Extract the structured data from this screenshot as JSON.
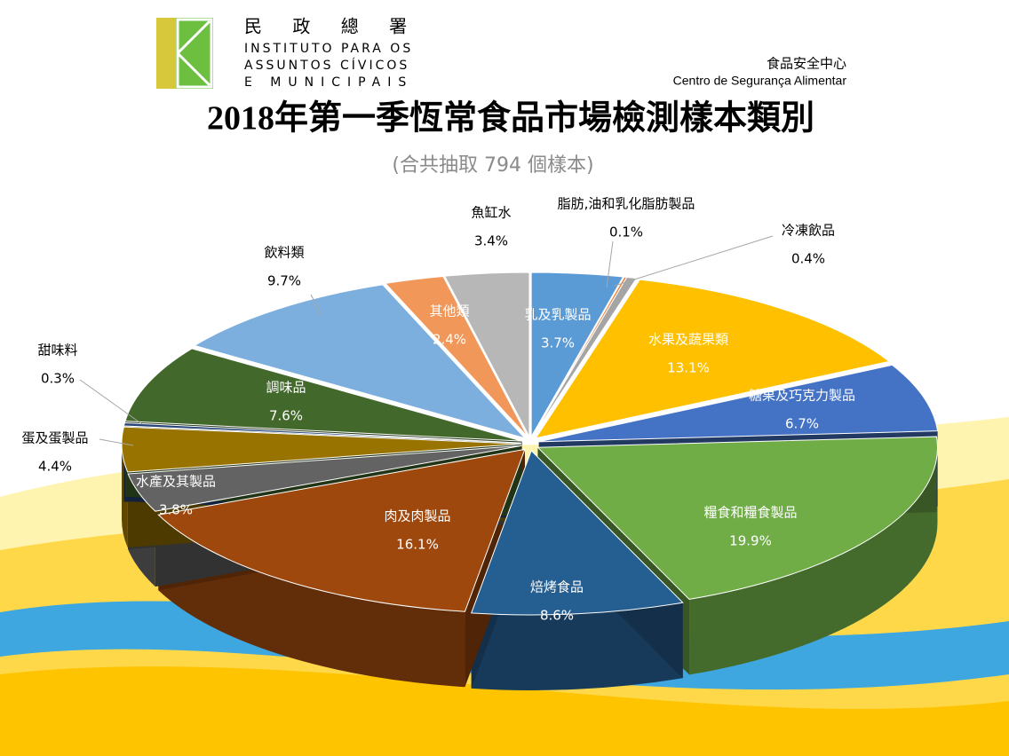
{
  "header": {
    "logo_name": "民 政 總 署",
    "logo_line1": "INSTITUTO PARA OS",
    "logo_line2": "ASSUNTOS CÍVICOS",
    "logo_line3": "E MUNICIPAIS",
    "center_name": "食品安全中心",
    "center_name_pt": "Centro de Segurança Alimentar"
  },
  "chart_data": {
    "type": "pie",
    "title": "2018年第一季恆常食品市場檢測樣本類別",
    "subtitle": "(合共抽取 794 個樣本)",
    "categories": [
      "乳及乳製品",
      "脂肪,油和乳化脂肪製品",
      "冷凍飲品",
      "水果及蔬果類",
      "糖果及巧克力製品",
      "糧食和糧食製品",
      "焙烤食品",
      "肉及肉製品",
      "水產及其製品",
      "蛋及蛋製品",
      "甜味料",
      "調味品",
      "飲料類",
      "其他類",
      "魚缸水"
    ],
    "values": [
      3.7,
      0.1,
      0.4,
      13.1,
      6.7,
      19.9,
      8.6,
      16.1,
      3.8,
      4.4,
      0.3,
      7.6,
      9.7,
      2.4,
      3.4
    ],
    "value_labels": [
      "3.7%",
      "0.1%",
      "0.4%",
      "13.1%",
      "6.7%",
      "19.9%",
      "8.6%",
      "16.1%",
      "3.8%",
      "4.4%",
      "0.3%",
      "7.6%",
      "9.7%",
      "2.4%",
      "3.4%"
    ],
    "colors": [
      "#5b9bd5",
      "#ed7d31",
      "#a5a5a5",
      "#ffc000",
      "#4472c4",
      "#70ad47",
      "#255e91",
      "#9e480e",
      "#636363",
      "#997300",
      "#264478",
      "#43682b",
      "#7cafdd",
      "#f1975a",
      "#b7b7b7"
    ]
  }
}
